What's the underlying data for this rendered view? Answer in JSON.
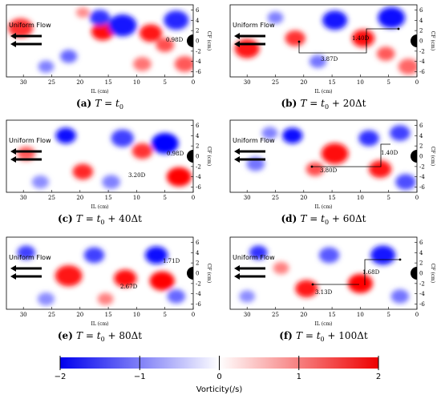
{
  "chart_data": {
    "type": "heatmap",
    "panels": [
      {
        "id": "a",
        "caption_label": "(a)",
        "caption_eq": "T = t",
        "caption_sub": "0",
        "caption_tail": "",
        "flow_label": "Uniform Flow",
        "annotations": [
          "0.98D"
        ],
        "xlabel": "IL (cm)",
        "ylabel": "CF (cm)",
        "xticks": [
          30,
          25,
          20,
          15,
          10,
          5,
          0
        ],
        "yticks": [
          6,
          4,
          2,
          0,
          -2,
          -4,
          -6
        ],
        "xlim": [
          33,
          0
        ],
        "ylim": [
          -7,
          7
        ],
        "blobs": [
          {
            "x": 30.5,
            "y": 2.5,
            "r": 2.2,
            "v": 1.6
          },
          {
            "x": 16.0,
            "y": 1.8,
            "r": 2.0,
            "v": 1.9
          },
          {
            "x": 12.5,
            "y": 3.0,
            "r": 2.5,
            "v": -1.8
          },
          {
            "x": 16.5,
            "y": 4.5,
            "r": 1.8,
            "v": -1.6
          },
          {
            "x": 7.5,
            "y": 1.5,
            "r": 2.0,
            "v": 1.8
          },
          {
            "x": 5.0,
            "y": -0.8,
            "r": 1.6,
            "v": 1.4
          },
          {
            "x": 3.0,
            "y": 4.0,
            "r": 2.2,
            "v": -1.7
          },
          {
            "x": 22.0,
            "y": -3.0,
            "r": 1.5,
            "v": -1.2
          },
          {
            "x": 9.0,
            "y": -4.5,
            "r": 1.6,
            "v": 1.1
          },
          {
            "x": 26.0,
            "y": -5.0,
            "r": 1.4,
            "v": -1.0
          },
          {
            "x": 19.5,
            "y": 5.5,
            "r": 1.2,
            "v": 0.9
          },
          {
            "x": 1.5,
            "y": -4.5,
            "r": 1.8,
            "v": 1.3
          }
        ]
      },
      {
        "id": "b",
        "caption_label": "(b)",
        "caption_eq": "T = t",
        "caption_sub": "0",
        "caption_tail": " + 20Δt",
        "flow_label": "Uniform Flow",
        "annotations": [
          "3.87D",
          "1.40D"
        ],
        "xlabel": "IL (cm)",
        "ylabel": "CF (cm)",
        "xticks": [
          30,
          25,
          20,
          15,
          10,
          5,
          0
        ],
        "yticks": [
          6,
          4,
          2,
          0,
          -2,
          -4,
          -6
        ],
        "xlim": [
          33,
          0
        ],
        "ylim": [
          -7,
          7
        ],
        "blobs": [
          {
            "x": 30.0,
            "y": -1.5,
            "r": 2.2,
            "v": 1.8
          },
          {
            "x": 21.5,
            "y": 0.5,
            "r": 1.8,
            "v": 1.6
          },
          {
            "x": 14.5,
            "y": 4.0,
            "r": 2.2,
            "v": -1.8
          },
          {
            "x": 9.5,
            "y": 0.5,
            "r": 2.0,
            "v": 1.9
          },
          {
            "x": 4.5,
            "y": 4.5,
            "r": 2.4,
            "v": -1.9
          },
          {
            "x": 5.5,
            "y": -2.5,
            "r": 1.6,
            "v": 1.3
          },
          {
            "x": 17.5,
            "y": -4.0,
            "r": 1.5,
            "v": -1.1
          },
          {
            "x": 25.0,
            "y": 4.5,
            "r": 1.4,
            "v": -1.0
          },
          {
            "x": 1.5,
            "y": -5.0,
            "r": 1.8,
            "v": 1.2
          }
        ]
      },
      {
        "id": "c",
        "caption_label": "(c)",
        "caption_eq": "T = t",
        "caption_sub": "0",
        "caption_tail": " + 40Δt",
        "flow_label": "Uniform Flow",
        "annotations": [
          "3.20D",
          "0.98D"
        ],
        "xlabel": "IL (cm)",
        "ylabel": "CF (cm)",
        "xticks": [
          30,
          25,
          20,
          15,
          10,
          5,
          0
        ],
        "yticks": [
          6,
          4,
          2,
          0,
          -2,
          -4,
          -6
        ],
        "xlim": [
          33,
          0
        ],
        "ylim": [
          -7,
          7
        ],
        "blobs": [
          {
            "x": 22.5,
            "y": 4.0,
            "r": 1.8,
            "v": -1.9
          },
          {
            "x": 19.5,
            "y": -3.0,
            "r": 1.8,
            "v": 1.7
          },
          {
            "x": 29.5,
            "y": 0.5,
            "r": 1.6,
            "v": 1.3
          },
          {
            "x": 12.5,
            "y": 3.5,
            "r": 2.0,
            "v": -1.5
          },
          {
            "x": 9.0,
            "y": 1.0,
            "r": 1.8,
            "v": 1.6
          },
          {
            "x": 5.0,
            "y": 2.5,
            "r": 2.4,
            "v": -2.0
          },
          {
            "x": 2.5,
            "y": -4.0,
            "r": 2.2,
            "v": 2.0
          },
          {
            "x": 14.5,
            "y": -5.0,
            "r": 1.6,
            "v": -1.0
          },
          {
            "x": 27.0,
            "y": -5.0,
            "r": 1.5,
            "v": -0.9
          }
        ]
      },
      {
        "id": "d",
        "caption_label": "(d)",
        "caption_eq": "T = t",
        "caption_sub": "0",
        "caption_tail": " + 60Δt",
        "flow_label": "Uniform Flow",
        "annotations": [
          "3.80D",
          "1.40D"
        ],
        "xlabel": "IL (cm)",
        "ylabel": "CF (cm)",
        "xticks": [
          30,
          25,
          20,
          15,
          10,
          5,
          0
        ],
        "yticks": [
          6,
          4,
          2,
          0,
          -2,
          -4,
          -6
        ],
        "xlim": [
          33,
          0
        ],
        "ylim": [
          -7,
          7
        ],
        "blobs": [
          {
            "x": 22.0,
            "y": 4.0,
            "r": 1.8,
            "v": -1.9
          },
          {
            "x": 14.5,
            "y": 0.5,
            "r": 2.4,
            "v": 1.9
          },
          {
            "x": 18.0,
            "y": -2.5,
            "r": 1.6,
            "v": 1.4
          },
          {
            "x": 8.5,
            "y": 3.5,
            "r": 1.8,
            "v": -1.6
          },
          {
            "x": 6.5,
            "y": -2.5,
            "r": 2.0,
            "v": 1.8
          },
          {
            "x": 3.0,
            "y": 4.5,
            "r": 1.8,
            "v": -1.5
          },
          {
            "x": 2.0,
            "y": -5.0,
            "r": 1.8,
            "v": -1.4
          },
          {
            "x": 28.5,
            "y": -1.5,
            "r": 1.6,
            "v": -1.1
          },
          {
            "x": 26.0,
            "y": 4.5,
            "r": 1.4,
            "v": -1.0
          }
        ]
      },
      {
        "id": "e",
        "caption_label": "(e)",
        "caption_eq": "T = t",
        "caption_sub": "0",
        "caption_tail": " + 80Δt",
        "flow_label": "Uniform Flow",
        "annotations": [
          "2.67D",
          "1.71D"
        ],
        "xlabel": "IL (cm)",
        "ylabel": "CF (cm)",
        "xticks": [
          30,
          25,
          20,
          15,
          10,
          5,
          0
        ],
        "yticks": [
          6,
          4,
          2,
          0,
          -2,
          -4,
          -6
        ],
        "xlim": [
          33,
          0
        ],
        "ylim": [
          -7,
          7
        ],
        "blobs": [
          {
            "x": 29.5,
            "y": 4.0,
            "r": 1.6,
            "v": -1.5
          },
          {
            "x": 22.0,
            "y": -0.5,
            "r": 2.4,
            "v": 1.8
          },
          {
            "x": 17.5,
            "y": 3.5,
            "r": 1.8,
            "v": -1.5
          },
          {
            "x": 12.0,
            "y": -1.0,
            "r": 2.0,
            "v": 1.9
          },
          {
            "x": 5.5,
            "y": -1.5,
            "r": 2.2,
            "v": 2.0
          },
          {
            "x": 6.5,
            "y": 3.5,
            "r": 2.0,
            "v": -1.9
          },
          {
            "x": 3.0,
            "y": -4.5,
            "r": 1.6,
            "v": -1.2
          },
          {
            "x": 15.5,
            "y": -5.0,
            "r": 1.4,
            "v": 1.0
          },
          {
            "x": 26.0,
            "y": -5.0,
            "r": 1.5,
            "v": -0.9
          }
        ]
      },
      {
        "id": "f",
        "caption_label": "(f)",
        "caption_eq": "T = t",
        "caption_sub": "0",
        "caption_tail": " + 100Δt",
        "flow_label": "Uniform Flow",
        "annotations": [
          "3.13D",
          "1.68D"
        ],
        "xlabel": "IL (cm)",
        "ylabel": "CF (cm)",
        "xticks": [
          30,
          25,
          20,
          15,
          10,
          5,
          0
        ],
        "yticks": [
          6,
          4,
          2,
          0,
          -2,
          -4,
          -6
        ],
        "xlim": [
          33,
          0
        ],
        "ylim": [
          -7,
          7
        ],
        "blobs": [
          {
            "x": 28.0,
            "y": 4.0,
            "r": 1.6,
            "v": -1.6
          },
          {
            "x": 19.5,
            "y": -3.0,
            "r": 2.0,
            "v": 1.8
          },
          {
            "x": 10.0,
            "y": -2.0,
            "r": 2.2,
            "v": 2.0
          },
          {
            "x": 15.5,
            "y": 3.5,
            "r": 1.8,
            "v": -1.3
          },
          {
            "x": 6.0,
            "y": 3.5,
            "r": 2.2,
            "v": -1.8
          },
          {
            "x": 3.0,
            "y": -4.5,
            "r": 1.6,
            "v": -1.1
          },
          {
            "x": 24.0,
            "y": 1.0,
            "r": 1.4,
            "v": 1.0
          },
          {
            "x": 30.0,
            "y": -4.5,
            "r": 1.4,
            "v": -0.9
          }
        ]
      }
    ],
    "colorbar": {
      "label": "Vorticity(/s)",
      "ticks": [
        -2,
        -1,
        0,
        1,
        2
      ],
      "range": [
        -2,
        2
      ],
      "colors": {
        "neg": "#0000ee",
        "mid": "#ffffff",
        "pos": "#ee0000"
      }
    }
  }
}
